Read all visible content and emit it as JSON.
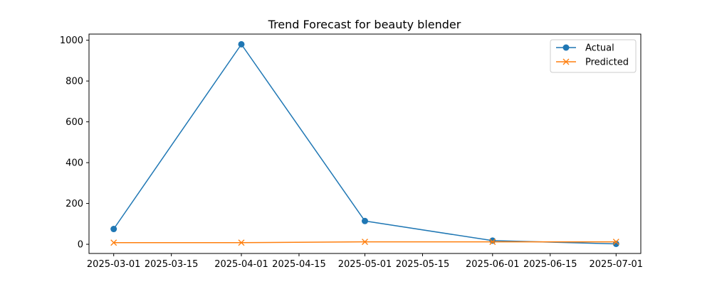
{
  "chart_data": {
    "type": "line",
    "title": "Trend Forecast for beauty blender",
    "xlabel": "",
    "ylabel": "",
    "x_ticks": [
      "2025-03-01",
      "2025-03-15",
      "2025-04-01",
      "2025-04-15",
      "2025-05-01",
      "2025-05-15",
      "2025-06-01",
      "2025-06-15",
      "2025-07-01"
    ],
    "y_ticks": [
      0,
      200,
      400,
      600,
      800,
      1000
    ],
    "ylim": [
      -45,
      1030
    ],
    "xlim": [
      "2025-02-23",
      "2025-07-07"
    ],
    "grid": false,
    "legend_position": "top-right",
    "x": [
      "2025-03-01",
      "2025-04-01",
      "2025-05-01",
      "2025-06-01",
      "2025-07-01"
    ],
    "series": [
      {
        "name": "Actual",
        "values": [
          75,
          980,
          114,
          18,
          2
        ],
        "color": "#1f77b4",
        "marker": "circle"
      },
      {
        "name": "Predicted",
        "values": [
          8,
          8,
          12,
          12,
          12
        ],
        "color": "#ff7f0e",
        "marker": "x"
      }
    ]
  }
}
